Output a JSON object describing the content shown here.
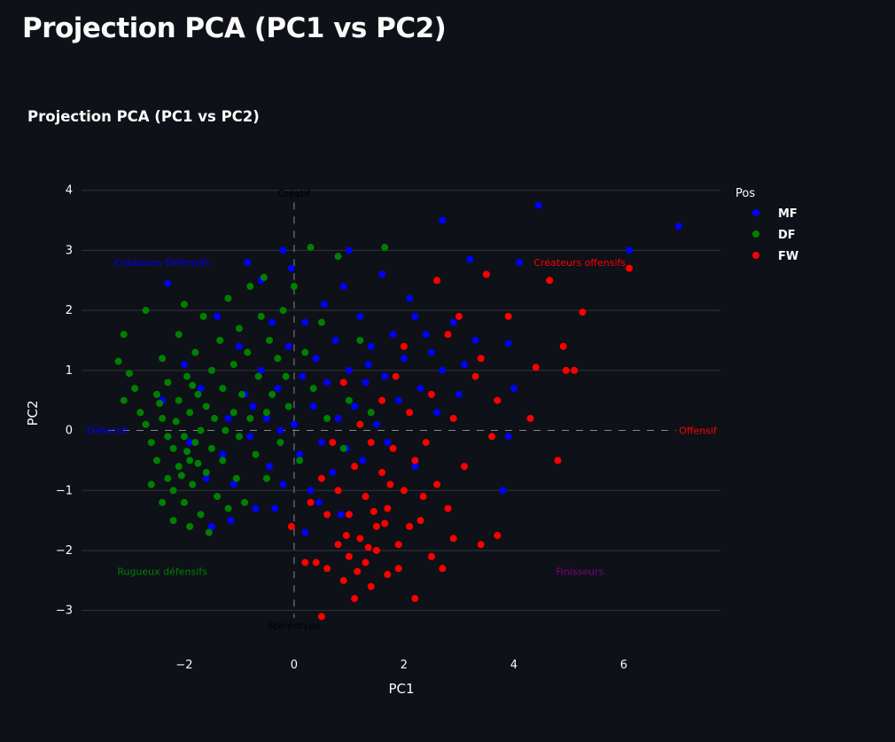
{
  "page": {
    "title": "Projection PCA (PC1 vs PC2)"
  },
  "chart_data": {
    "type": "scatter",
    "title": "Projection PCA (PC1 vs PC2)",
    "xlabel": "PC1",
    "ylabel": "PC2",
    "xlim": [
      -3.87,
      7.76
    ],
    "ylim": [
      -3.3,
      4.35
    ],
    "xticks": [
      -2,
      0,
      2,
      4,
      6
    ],
    "xtick_labels": [
      "−2",
      "0",
      "2",
      "4",
      "6"
    ],
    "yticks": [
      -3,
      -2,
      -1,
      0,
      1,
      2,
      3,
      4
    ],
    "ytick_labels": [
      "−3",
      "−2",
      "−1",
      "0",
      "1",
      "2",
      "3",
      "4"
    ],
    "grid": "horizontal",
    "legend": {
      "title": "Pos",
      "placement": "top-right-outside"
    },
    "series": [
      {
        "name": "MF",
        "color": "#0000ff",
        "points": [
          [
            7.0,
            3.4
          ],
          [
            6.1,
            3.0
          ],
          [
            4.45,
            3.75
          ],
          [
            4.1,
            2.8
          ],
          [
            3.2,
            2.85
          ],
          [
            2.7,
            3.5
          ],
          [
            -0.2,
            3.0
          ],
          [
            -2.3,
            2.45
          ],
          [
            -0.85,
            2.8
          ],
          [
            -0.6,
            2.5
          ],
          [
            3.9,
            1.45
          ],
          [
            3.3,
            1.5
          ],
          [
            2.9,
            1.8
          ],
          [
            2.2,
            1.9
          ],
          [
            2.5,
            1.3
          ],
          [
            4.0,
            0.7
          ],
          [
            3.8,
            -1.0
          ],
          [
            3.9,
            -0.1
          ],
          [
            -2.0,
            1.1
          ],
          [
            -1.7,
            0.7
          ],
          [
            -1.4,
            1.9
          ],
          [
            -1.3,
            -0.4
          ],
          [
            -1.2,
            0.2
          ],
          [
            -1.1,
            -0.9
          ],
          [
            -1.0,
            1.4
          ],
          [
            -0.9,
            0.6
          ],
          [
            -0.8,
            -0.1
          ],
          [
            -0.7,
            -1.3
          ],
          [
            -0.6,
            1.0
          ],
          [
            -0.5,
            0.2
          ],
          [
            -0.45,
            -0.6
          ],
          [
            -0.4,
            1.8
          ],
          [
            -0.3,
            0.7
          ],
          [
            -0.2,
            -0.9
          ],
          [
            -0.1,
            1.4
          ],
          [
            0.0,
            0.1
          ],
          [
            0.1,
            -0.4
          ],
          [
            0.15,
            0.9
          ],
          [
            0.2,
            1.8
          ],
          [
            0.3,
            -1.0
          ],
          [
            0.35,
            0.4
          ],
          [
            0.4,
            1.2
          ],
          [
            0.5,
            -0.2
          ],
          [
            0.55,
            2.1
          ],
          [
            0.6,
            0.8
          ],
          [
            0.7,
            -0.7
          ],
          [
            0.75,
            1.5
          ],
          [
            0.8,
            0.2
          ],
          [
            0.9,
            2.4
          ],
          [
            0.95,
            -0.3
          ],
          [
            1.0,
            1.0
          ],
          [
            1.1,
            0.4
          ],
          [
            1.2,
            1.9
          ],
          [
            1.25,
            -0.5
          ],
          [
            1.3,
            0.8
          ],
          [
            1.4,
            1.4
          ],
          [
            1.5,
            0.1
          ],
          [
            1.6,
            2.6
          ],
          [
            1.65,
            0.9
          ],
          [
            1.8,
            1.6
          ],
          [
            1.9,
            0.5
          ],
          [
            2.0,
            1.2
          ],
          [
            2.1,
            2.2
          ],
          [
            2.3,
            0.7
          ],
          [
            2.4,
            1.6
          ],
          [
            2.6,
            0.3
          ],
          [
            2.7,
            1.0
          ],
          [
            3.0,
            0.6
          ],
          [
            3.1,
            1.1
          ],
          [
            -1.6,
            -0.8
          ],
          [
            -1.5,
            -1.6
          ],
          [
            -1.9,
            -0.2
          ],
          [
            -1.15,
            -1.5
          ],
          [
            -0.35,
            -1.3
          ],
          [
            0.45,
            -1.2
          ],
          [
            -2.4,
            0.5
          ],
          [
            -0.05,
            2.7
          ],
          [
            1.0,
            3.0
          ],
          [
            1.35,
            1.1
          ],
          [
            0.2,
            -1.7
          ],
          [
            0.85,
            -1.4
          ],
          [
            1.7,
            -0.2
          ],
          [
            2.2,
            -0.6
          ],
          [
            -0.75,
            0.4
          ],
          [
            -0.25,
            0.0
          ]
        ]
      },
      {
        "name": "DF",
        "color": "#008000",
        "points": [
          [
            -3.2,
            1.15
          ],
          [
            -3.1,
            1.6
          ],
          [
            -2.7,
            2.0
          ],
          [
            -3.1,
            0.5
          ],
          [
            -3.0,
            0.95
          ],
          [
            -2.9,
            0.7
          ],
          [
            -2.8,
            0.3
          ],
          [
            -2.7,
            0.1
          ],
          [
            -2.6,
            -0.2
          ],
          [
            -2.5,
            0.6
          ],
          [
            -2.5,
            -0.5
          ],
          [
            -2.4,
            1.2
          ],
          [
            -2.4,
            0.2
          ],
          [
            -2.3,
            -0.8
          ],
          [
            -2.3,
            0.8
          ],
          [
            -2.2,
            -0.3
          ],
          [
            -2.2,
            -1.0
          ],
          [
            -2.1,
            0.5
          ],
          [
            -2.1,
            -0.6
          ],
          [
            -2.1,
            1.6
          ],
          [
            -2.0,
            -0.1
          ],
          [
            -2.0,
            -1.2
          ],
          [
            -2.0,
            2.1
          ],
          [
            -1.95,
            0.9
          ],
          [
            -1.9,
            -0.5
          ],
          [
            -1.9,
            0.3
          ],
          [
            -1.85,
            -0.9
          ],
          [
            -1.8,
            1.3
          ],
          [
            -1.8,
            -0.2
          ],
          [
            -1.75,
            0.6
          ],
          [
            -1.7,
            -1.4
          ],
          [
            -1.7,
            0.0
          ],
          [
            -1.65,
            1.9
          ],
          [
            -1.6,
            -0.7
          ],
          [
            -1.6,
            0.4
          ],
          [
            -1.55,
            -1.7
          ],
          [
            -1.5,
            1.0
          ],
          [
            -1.5,
            -0.3
          ],
          [
            -1.45,
            0.2
          ],
          [
            -1.4,
            -1.1
          ],
          [
            -1.35,
            1.5
          ],
          [
            -1.3,
            0.7
          ],
          [
            -1.3,
            -0.5
          ],
          [
            -1.25,
            0.0
          ],
          [
            -1.2,
            2.2
          ],
          [
            -1.2,
            -1.3
          ],
          [
            -1.1,
            1.1
          ],
          [
            -1.1,
            0.3
          ],
          [
            -1.05,
            -0.8
          ],
          [
            -1.0,
            1.7
          ],
          [
            -1.0,
            -0.1
          ],
          [
            -0.95,
            0.6
          ],
          [
            -0.9,
            -1.2
          ],
          [
            -0.85,
            1.3
          ],
          [
            -0.8,
            0.2
          ],
          [
            -0.8,
            2.4
          ],
          [
            -0.7,
            -0.4
          ],
          [
            -0.65,
            0.9
          ],
          [
            -0.6,
            1.9
          ],
          [
            -0.55,
            2.55
          ],
          [
            -0.5,
            0.3
          ],
          [
            -0.5,
            -0.8
          ],
          [
            -0.45,
            1.5
          ],
          [
            -0.4,
            0.6
          ],
          [
            -0.3,
            1.2
          ],
          [
            -0.25,
            -0.2
          ],
          [
            -0.2,
            2.0
          ],
          [
            -0.15,
            0.9
          ],
          [
            -0.1,
            0.4
          ],
          [
            0.0,
            2.4
          ],
          [
            0.1,
            -0.5
          ],
          [
            0.2,
            1.3
          ],
          [
            0.3,
            3.05
          ],
          [
            0.35,
            0.7
          ],
          [
            0.5,
            1.8
          ],
          [
            0.6,
            0.2
          ],
          [
            0.8,
            2.9
          ],
          [
            1.0,
            0.5
          ],
          [
            1.2,
            1.5
          ],
          [
            1.65,
            3.05
          ],
          [
            1.4,
            0.3
          ],
          [
            0.9,
            -0.3
          ],
          [
            -2.6,
            -0.9
          ],
          [
            -2.4,
            -1.2
          ],
          [
            -2.2,
            -1.5
          ],
          [
            -1.9,
            -1.6
          ],
          [
            -2.3,
            -0.1
          ],
          [
            -2.15,
            0.15
          ],
          [
            -1.95,
            -0.35
          ],
          [
            -2.45,
            0.45
          ],
          [
            -1.75,
            -0.55
          ],
          [
            -2.05,
            -0.75
          ],
          [
            -1.85,
            0.75
          ]
        ]
      },
      {
        "name": "FW",
        "color": "#ff0000",
        "points": [
          [
            6.1,
            2.7
          ],
          [
            4.65,
            2.5
          ],
          [
            5.25,
            1.97
          ],
          [
            4.9,
            1.4
          ],
          [
            4.95,
            1.0
          ],
          [
            5.1,
            1.0
          ],
          [
            4.4,
            1.05
          ],
          [
            4.8,
            -0.5
          ],
          [
            3.7,
            -1.75
          ],
          [
            3.4,
            -1.9
          ],
          [
            0.5,
            -3.1
          ],
          [
            -0.05,
            -1.6
          ],
          [
            3.5,
            2.6
          ],
          [
            3.9,
            1.9
          ],
          [
            2.6,
            2.5
          ],
          [
            3.4,
            1.2
          ],
          [
            3.7,
            0.5
          ],
          [
            3.1,
            -0.6
          ],
          [
            3.3,
            0.9
          ],
          [
            2.9,
            0.2
          ],
          [
            2.8,
            1.6
          ],
          [
            2.5,
            0.6
          ],
          [
            2.4,
            -0.2
          ],
          [
            2.6,
            -0.9
          ],
          [
            2.8,
            -1.3
          ],
          [
            2.9,
            -1.8
          ],
          [
            2.2,
            -2.8
          ],
          [
            2.5,
            -2.1
          ],
          [
            2.3,
            -1.5
          ],
          [
            2.2,
            -0.5
          ],
          [
            2.1,
            0.3
          ],
          [
            2.0,
            -1.0
          ],
          [
            2.0,
            1.4
          ],
          [
            1.9,
            -1.9
          ],
          [
            1.8,
            -0.3
          ],
          [
            1.7,
            -2.4
          ],
          [
            1.7,
            -1.3
          ],
          [
            1.6,
            0.5
          ],
          [
            1.6,
            -0.7
          ],
          [
            1.5,
            -2.0
          ],
          [
            1.5,
            -1.6
          ],
          [
            1.4,
            -0.2
          ],
          [
            1.4,
            -2.6
          ],
          [
            1.3,
            -1.1
          ],
          [
            1.3,
            -2.2
          ],
          [
            1.2,
            0.1
          ],
          [
            1.2,
            -1.8
          ],
          [
            1.1,
            -2.8
          ],
          [
            1.1,
            -0.6
          ],
          [
            1.0,
            -1.4
          ],
          [
            1.0,
            -2.1
          ],
          [
            0.9,
            0.8
          ],
          [
            0.9,
            -2.5
          ],
          [
            0.8,
            -1.0
          ],
          [
            0.8,
            -1.9
          ],
          [
            0.7,
            -0.2
          ],
          [
            0.6,
            -2.3
          ],
          [
            0.6,
            -1.4
          ],
          [
            0.5,
            -0.8
          ],
          [
            0.4,
            -2.2
          ],
          [
            0.3,
            -1.2
          ],
          [
            0.2,
            -2.2
          ],
          [
            1.9,
            -2.3
          ],
          [
            2.1,
            -1.6
          ],
          [
            1.75,
            -0.9
          ],
          [
            1.45,
            -1.35
          ],
          [
            1.15,
            -2.35
          ],
          [
            0.95,
            -1.75
          ],
          [
            1.35,
            -1.95
          ],
          [
            1.65,
            -1.55
          ],
          [
            2.35,
            -1.1
          ],
          [
            1.85,
            0.9
          ],
          [
            3.6,
            -0.1
          ],
          [
            4.3,
            0.2
          ],
          [
            2.7,
            -2.3
          ],
          [
            3.0,
            1.9
          ]
        ]
      }
    ],
    "reference_lines": [
      {
        "axis": "x",
        "value": 0,
        "style": "dashed"
      },
      {
        "axis": "y",
        "value": 0,
        "style": "dashed"
      }
    ],
    "annotations": [
      {
        "text": "Créatif",
        "x": 0,
        "y": 3.95,
        "color": "#000000"
      },
      {
        "text": "Stéréotype",
        "x": 0,
        "y": -3.25,
        "color": "#000000"
      },
      {
        "text": "Défensif",
        "x": -3.4,
        "y": 0,
        "color": "#0000ff"
      },
      {
        "text": "Offensif",
        "x": 7.35,
        "y": 0,
        "color": "#ff0000"
      },
      {
        "text": "Créateurs Défensifs",
        "x": -2.4,
        "y": 2.8,
        "color": "#0000ff"
      },
      {
        "text": "Créateurs offensifs",
        "x": 5.2,
        "y": 2.8,
        "color": "#ff0000"
      },
      {
        "text": "Rugueux défensifs",
        "x": -2.4,
        "y": -2.35,
        "color": "#008000"
      },
      {
        "text": "Finisseurs",
        "x": 5.2,
        "y": -2.35,
        "color": "#800080"
      }
    ]
  }
}
